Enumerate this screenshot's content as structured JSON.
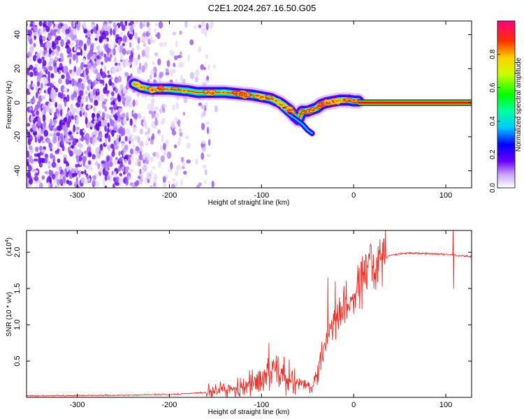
{
  "title": "C2E1.2024.267.16.50.G05",
  "chart_data": [
    {
      "type": "heatmap",
      "name": "spectrogram",
      "xlabel": "Height of straight line (km)",
      "ylabel": "Frequency (Hz)",
      "xlim": [
        -355,
        128
      ],
      "ylim": [
        -50,
        48
      ],
      "xticks": [
        -300,
        -200,
        -100,
        0,
        100
      ],
      "yticks": [
        -40,
        -20,
        0,
        20,
        40
      ],
      "ridge": {
        "x": [
          -238,
          -230,
          -220,
          -210,
          -200,
          -190,
          -180,
          -170,
          -160,
          -150,
          -140,
          -130,
          -120,
          -110,
          -100,
          -90,
          -80,
          -70,
          -64,
          -60,
          -56,
          -50,
          -45,
          -40,
          -35,
          -30,
          -25,
          -20,
          -15,
          -10,
          -5,
          0,
          5
        ],
        "y": [
          11,
          9,
          8,
          8,
          8,
          7.5,
          7,
          6,
          6,
          6,
          6,
          5.5,
          5,
          4.5,
          3.5,
          2.5,
          0,
          -4,
          -8,
          -10,
          -5,
          -5,
          -4,
          -3,
          -1,
          0,
          0.5,
          1,
          1.5,
          1.5,
          1.5,
          1,
          1
        ]
      },
      "branch": {
        "x": [
          -80,
          -70,
          -62,
          -55,
          -50,
          -45
        ],
        "y": [
          -2,
          -7,
          -10,
          -13,
          -16,
          -18
        ]
      },
      "tone": {
        "from": 5,
        "to": 128,
        "value": 0
      },
      "colorbar": {
        "label": "Normalized spectral amplitude",
        "range": [
          0,
          1
        ],
        "ticks": [
          0.0,
          0.2,
          0.4,
          0.6,
          0.8
        ],
        "tick_labels": [
          "0.0",
          "0.2",
          "0.4",
          "0.6",
          "0.8"
        ]
      }
    },
    {
      "type": "line",
      "name": "snr",
      "xlabel": "Height of straight line (km)",
      "ylabel": "SNR (10 * v/v)",
      "scale_label": "(x10",
      "scale_exp": "4",
      "scale_close": ")",
      "xlim": [
        -355,
        128
      ],
      "ylim": [
        0,
        2.3
      ],
      "xticks": [
        -300,
        -200,
        -100,
        0,
        100
      ],
      "yticks": [
        0.5,
        1.0,
        1.5,
        2.0
      ],
      "ytick_labels": [
        "0.5",
        "1.0",
        "1.5",
        "2.0"
      ],
      "color": "#e8312b",
      "envelope": {
        "x": [
          -355,
          -250,
          -200,
          -170,
          -150,
          -130,
          -115,
          -105,
          -95,
          -85,
          -75,
          -65,
          -55,
          -45,
          -40,
          -35,
          -30,
          -25,
          -20,
          -15,
          -10,
          -5,
          0,
          5,
          10,
          20,
          30,
          40,
          50,
          60,
          80,
          100,
          110,
          128
        ],
        "y": [
          0.02,
          0.03,
          0.04,
          0.06,
          0.08,
          0.12,
          0.16,
          0.22,
          0.3,
          0.35,
          0.3,
          0.22,
          0.18,
          0.12,
          0.3,
          0.55,
          0.8,
          0.95,
          1.05,
          1.15,
          1.25,
          1.3,
          1.4,
          1.5,
          1.65,
          1.8,
          1.9,
          1.95,
          1.98,
          1.99,
          1.98,
          1.97,
          1.96,
          1.94
        ]
      },
      "spikes": [
        {
          "x": -92,
          "y": 0.75
        },
        {
          "x": -28,
          "y": 1.65
        },
        {
          "x": -20,
          "y": 1.6
        },
        {
          "x": 108,
          "y": 2.35
        },
        {
          "x": 108.6,
          "y": 1.5
        }
      ]
    }
  ]
}
